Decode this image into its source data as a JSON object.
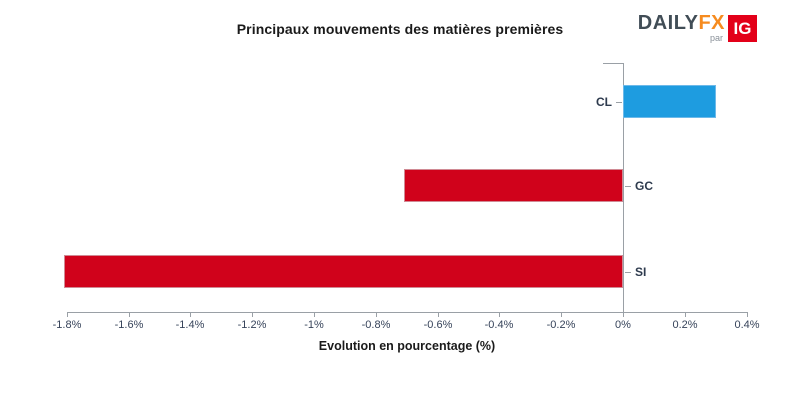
{
  "chart_data": {
    "type": "bar",
    "orientation": "horizontal",
    "title": "Principaux mouvements des matières premières",
    "xlabel": "Evolution en pourcentage (%)",
    "categories": [
      "CL",
      "GC",
      "SI"
    ],
    "values": [
      0.3,
      -0.71,
      -1.81
    ],
    "xlim": [
      -1.9,
      0.45
    ],
    "ticks": [
      -1.8,
      -1.6,
      -1.4,
      -1.2,
      -1.0,
      -0.8,
      -0.6,
      -0.4,
      -0.2,
      0,
      0.2,
      0.4
    ],
    "tick_labels": [
      "-1.8%",
      "-1.6%",
      "-1.4%",
      "-1.2%",
      "-1%",
      "-0.8%",
      "-0.6%",
      "-0.4%",
      "-0.2%",
      "0%",
      "0.2%",
      "0.4%"
    ],
    "legend": "none",
    "grid": "off"
  },
  "colors": {
    "positive_bar": "#1e9ce0",
    "positive_bar_border": "#6db9e9",
    "negative_bar": "#d0021b",
    "negative_bar_border": "#d08a94",
    "axis_line": "#9aa0a6",
    "tick_text": "#36435a",
    "category_text": "#2e3b4e",
    "title_text": "#1a1a1a"
  },
  "logo": {
    "daily": "DAILY",
    "fx": "FX",
    "par": "par",
    "ig": "IG",
    "ig_bg": "#e30019"
  }
}
